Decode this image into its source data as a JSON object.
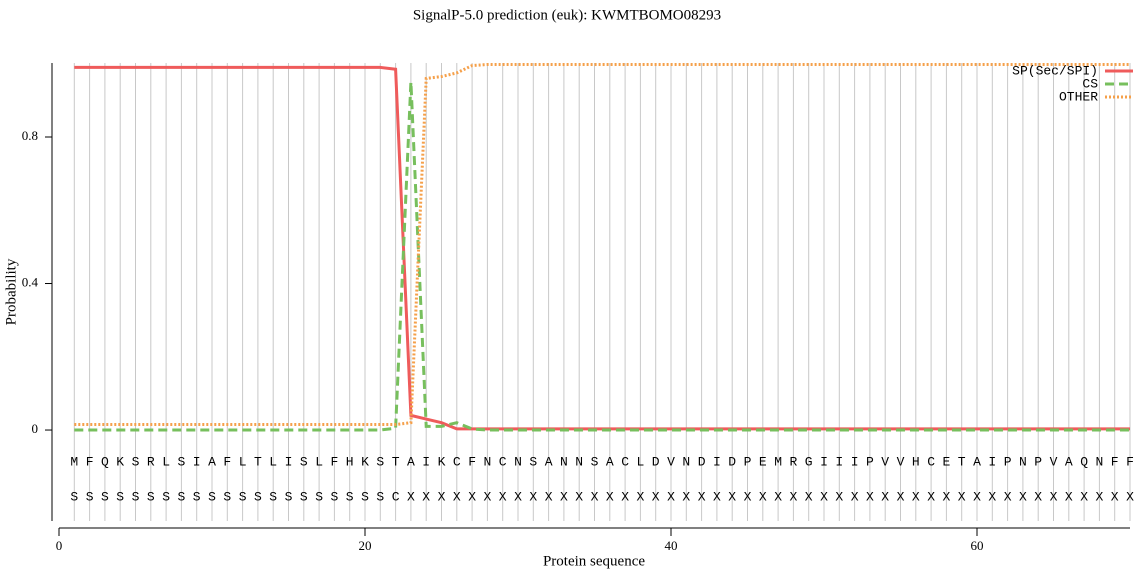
{
  "chart_data": {
    "type": "line",
    "title": "SignalP-5.0 prediction (euk):  KWMTBOMO08293",
    "xlabel": "Protein sequence",
    "ylabel": "Probability",
    "x": [
      1,
      2,
      3,
      4,
      5,
      6,
      7,
      8,
      9,
      10,
      11,
      12,
      13,
      14,
      15,
      16,
      17,
      18,
      19,
      20,
      21,
      22,
      23,
      24,
      25,
      26,
      27,
      28,
      29,
      30,
      31,
      32,
      33,
      34,
      35,
      36,
      37,
      38,
      39,
      40,
      41,
      42,
      43,
      44,
      45,
      46,
      47,
      48,
      49,
      50,
      51,
      52,
      53,
      54,
      55,
      56,
      57,
      58,
      59,
      60,
      61,
      62,
      63,
      64,
      65,
      66,
      67,
      68,
      69,
      70
    ],
    "residues": [
      "M",
      "F",
      "Q",
      "K",
      "S",
      "R",
      "L",
      "S",
      "I",
      "A",
      "F",
      "L",
      "T",
      "L",
      "I",
      "S",
      "L",
      "F",
      "H",
      "K",
      "S",
      "T",
      "A",
      "I",
      "K",
      "C",
      "F",
      "N",
      "C",
      "N",
      "S",
      "A",
      "N",
      "N",
      "S",
      "A",
      "C",
      "L",
      "D",
      "V",
      "N",
      "D",
      "I",
      "D",
      "P",
      "E",
      "M",
      "R",
      "G",
      "I",
      "I",
      "I",
      "P",
      "V",
      "V",
      "H",
      "C",
      "E",
      "T",
      "A",
      "I",
      "P",
      "N",
      "P",
      "V",
      "A",
      "Q",
      "N",
      "F",
      "F"
    ],
    "annotation": [
      "S",
      "S",
      "S",
      "S",
      "S",
      "S",
      "S",
      "S",
      "S",
      "S",
      "S",
      "S",
      "S",
      "S",
      "S",
      "S",
      "S",
      "S",
      "S",
      "S",
      "S",
      "C",
      "X",
      "X",
      "X",
      "X",
      "X",
      "X",
      "X",
      "X",
      "X",
      "X",
      "X",
      "X",
      "X",
      "X",
      "X",
      "X",
      "X",
      "X",
      "X",
      "X",
      "X",
      "X",
      "X",
      "X",
      "X",
      "X",
      "X",
      "X",
      "X",
      "X",
      "X",
      "X",
      "X",
      "X",
      "X",
      "X",
      "X",
      "X",
      "X",
      "X",
      "X",
      "X",
      "X",
      "X",
      "X",
      "X",
      "X",
      "X"
    ],
    "series": [
      {
        "name": "SP(Sec/SPI)",
        "color": "#ef5b5b",
        "dash": "solid",
        "values": [
          0.99,
          0.99,
          0.99,
          0.99,
          0.99,
          0.99,
          0.99,
          0.99,
          0.99,
          0.99,
          0.99,
          0.99,
          0.99,
          0.99,
          0.99,
          0.99,
          0.99,
          0.99,
          0.99,
          0.99,
          0.99,
          0.985,
          0.04,
          0.03,
          0.02,
          0.003,
          0.003,
          0.003,
          0.003,
          0.003,
          0.003,
          0.003,
          0.003,
          0.003,
          0.003,
          0.003,
          0.003,
          0.003,
          0.003,
          0.003,
          0.003,
          0.003,
          0.003,
          0.003,
          0.003,
          0.003,
          0.003,
          0.003,
          0.003,
          0.003,
          0.003,
          0.003,
          0.003,
          0.003,
          0.003,
          0.003,
          0.003,
          0.003,
          0.003,
          0.003,
          0.003,
          0.003,
          0.003,
          0.003,
          0.003,
          0.003,
          0.003,
          0.003,
          0.003,
          0.003
        ]
      },
      {
        "name": "CS",
        "color": "#77bf5d",
        "dash": "dashed",
        "values": [
          0,
          0,
          0,
          0,
          0,
          0,
          0,
          0,
          0,
          0,
          0,
          0,
          0,
          0,
          0,
          0,
          0,
          0,
          0,
          0,
          0,
          0.005,
          0.95,
          0.01,
          0.01,
          0.02,
          0.003,
          0,
          0,
          0,
          0,
          0,
          0,
          0,
          0,
          0,
          0,
          0,
          0,
          0,
          0,
          0,
          0,
          0,
          0,
          0,
          0,
          0,
          0,
          0,
          0,
          0,
          0,
          0,
          0,
          0,
          0,
          0,
          0,
          0,
          0,
          0,
          0,
          0,
          0,
          0,
          0,
          0,
          0,
          0
        ]
      },
      {
        "name": "OTHER",
        "color": "#f5a04a",
        "dash": "dotted",
        "values": [
          0.015,
          0.015,
          0.015,
          0.015,
          0.015,
          0.015,
          0.015,
          0.015,
          0.015,
          0.015,
          0.015,
          0.015,
          0.015,
          0.015,
          0.015,
          0.015,
          0.015,
          0.015,
          0.015,
          0.015,
          0.015,
          0.015,
          0.02,
          0.96,
          0.965,
          0.975,
          0.995,
          0.998,
          0.998,
          0.998,
          0.998,
          0.998,
          0.998,
          0.998,
          0.998,
          0.998,
          0.998,
          0.998,
          0.998,
          0.998,
          0.998,
          0.998,
          0.998,
          0.998,
          0.998,
          0.998,
          0.998,
          0.998,
          0.998,
          0.998,
          0.998,
          0.998,
          0.998,
          0.998,
          0.998,
          0.998,
          0.998,
          0.998,
          0.998,
          0.998,
          0.998,
          0.998,
          0.998,
          0.998,
          0.998,
          0.998,
          0.998,
          0.998,
          0.998,
          0.998
        ]
      }
    ],
    "xlim": [
      0,
      70
    ],
    "xticks": [
      0,
      20,
      40,
      60
    ],
    "ylim": [
      -0.25,
      1.0
    ],
    "yticks": [
      0,
      0.4,
      0.8
    ],
    "legend": "upper right"
  }
}
